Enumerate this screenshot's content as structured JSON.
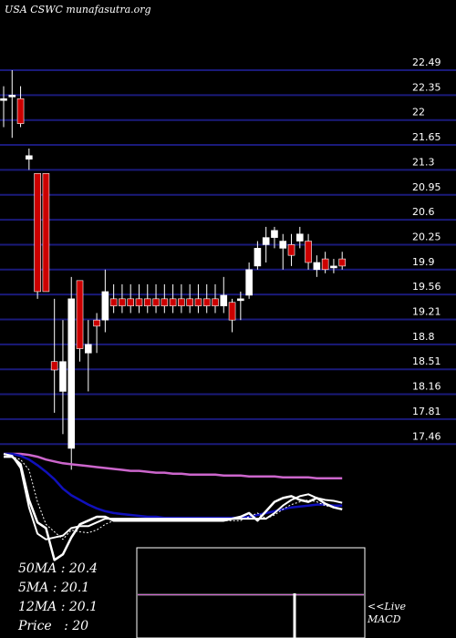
{
  "header": {
    "title": "USA CSWC munafasutra.org"
  },
  "readouts": {
    "ma50": "50MA : 20.4",
    "ma5": "5MA : 20.1",
    "ma12": "12MA : 20.1",
    "price": "Price   : 20"
  },
  "macd_label": {
    "line1": "<<Live",
    "line2": "MACD"
  },
  "colors": {
    "background": "#000000",
    "gridline": "#1a1a7a",
    "bull_candle": "#ffffff",
    "bear_candle": "#cc0000",
    "ma_long": "#cc66cc",
    "ma_mid": "#1010bb",
    "ma_short": "#ffffff",
    "macd_signal": "#cc66cc"
  },
  "chart_data": [
    {
      "type": "candlestick",
      "title": "USA CSWC munafasutra.org",
      "y_ticks": [
        22.49,
        22.35,
        22,
        21.65,
        21.3,
        20.95,
        20.6,
        20.25,
        19.9,
        19.56,
        19.21,
        18.8,
        18.51,
        18.16,
        17.81,
        17.46
      ],
      "candles": [
        {
          "o": 22.3,
          "h": 22.4,
          "l": 21.9,
          "c": 22.3,
          "dir": "bull"
        },
        {
          "o": 22.35,
          "h": 22.49,
          "l": 21.75,
          "c": 22.35,
          "dir": "bull"
        },
        {
          "o": 22.3,
          "h": 22.4,
          "l": 21.9,
          "c": 21.95,
          "dir": "bear"
        },
        {
          "o": 21.45,
          "h": 21.6,
          "l": 21.3,
          "c": 21.5,
          "dir": "bull"
        },
        {
          "o": 21.25,
          "h": 21.25,
          "l": 19.5,
          "c": 19.6,
          "dir": "bear"
        },
        {
          "o": 21.25,
          "h": 21.25,
          "l": 19.6,
          "c": 19.6,
          "dir": "bear"
        },
        {
          "o": 18.6,
          "h": 19.5,
          "l": 17.9,
          "c": 18.5,
          "dir": "bear"
        },
        {
          "o": 18.2,
          "h": 19.2,
          "l": 17.6,
          "c": 18.6,
          "dir": "bull"
        },
        {
          "o": 17.4,
          "h": 19.8,
          "l": 17.1,
          "c": 19.5,
          "dir": "bull"
        },
        {
          "o": 19.75,
          "h": 19.75,
          "l": 18.6,
          "c": 18.75,
          "dir": "bear"
        },
        {
          "o": 18.7,
          "h": 19.2,
          "l": 18.2,
          "c": 18.8,
          "dir": "bull"
        },
        {
          "o": 19.2,
          "h": 19.3,
          "l": 18.7,
          "c": 19.1,
          "dir": "bear"
        },
        {
          "o": 19.2,
          "h": 19.9,
          "l": 19.0,
          "c": 19.6,
          "dir": "bull"
        },
        {
          "o": 19.5,
          "h": 19.7,
          "l": 19.3,
          "c": 19.4,
          "dir": "bear"
        },
        {
          "o": 19.5,
          "h": 19.7,
          "l": 19.3,
          "c": 19.4,
          "dir": "bear"
        },
        {
          "o": 19.5,
          "h": 19.7,
          "l": 19.3,
          "c": 19.4,
          "dir": "bear"
        },
        {
          "o": 19.5,
          "h": 19.7,
          "l": 19.3,
          "c": 19.4,
          "dir": "bear"
        },
        {
          "o": 19.5,
          "h": 19.7,
          "l": 19.3,
          "c": 19.4,
          "dir": "bear"
        },
        {
          "o": 19.5,
          "h": 19.7,
          "l": 19.3,
          "c": 19.4,
          "dir": "bear"
        },
        {
          "o": 19.5,
          "h": 19.7,
          "l": 19.3,
          "c": 19.4,
          "dir": "bear"
        },
        {
          "o": 19.5,
          "h": 19.7,
          "l": 19.3,
          "c": 19.4,
          "dir": "bear"
        },
        {
          "o": 19.5,
          "h": 19.7,
          "l": 19.3,
          "c": 19.4,
          "dir": "bear"
        },
        {
          "o": 19.5,
          "h": 19.7,
          "l": 19.3,
          "c": 19.4,
          "dir": "bear"
        },
        {
          "o": 19.5,
          "h": 19.7,
          "l": 19.3,
          "c": 19.4,
          "dir": "bear"
        },
        {
          "o": 19.5,
          "h": 19.7,
          "l": 19.3,
          "c": 19.4,
          "dir": "bear"
        },
        {
          "o": 19.5,
          "h": 19.7,
          "l": 19.3,
          "c": 19.4,
          "dir": "bear"
        },
        {
          "o": 19.4,
          "h": 19.8,
          "l": 19.3,
          "c": 19.55,
          "dir": "bull"
        },
        {
          "o": 19.45,
          "h": 19.5,
          "l": 19.0,
          "c": 19.2,
          "dir": "bear"
        },
        {
          "o": 19.5,
          "h": 19.6,
          "l": 19.2,
          "c": 19.5,
          "dir": "bull"
        },
        {
          "o": 19.55,
          "h": 20.0,
          "l": 19.5,
          "c": 19.9,
          "dir": "bull"
        },
        {
          "o": 19.95,
          "h": 20.3,
          "l": 19.9,
          "c": 20.2,
          "dir": "bull"
        },
        {
          "o": 20.25,
          "h": 20.5,
          "l": 20.0,
          "c": 20.35,
          "dir": "bull"
        },
        {
          "o": 20.35,
          "h": 20.5,
          "l": 20.2,
          "c": 20.45,
          "dir": "bull"
        },
        {
          "o": 20.2,
          "h": 20.4,
          "l": 19.9,
          "c": 20.3,
          "dir": "bull"
        },
        {
          "o": 20.25,
          "h": 20.4,
          "l": 19.95,
          "c": 20.1,
          "dir": "bear"
        },
        {
          "o": 20.3,
          "h": 20.5,
          "l": 20.2,
          "c": 20.4,
          "dir": "bull"
        },
        {
          "o": 20.3,
          "h": 20.4,
          "l": 19.9,
          "c": 20.0,
          "dir": "bear"
        },
        {
          "o": 19.9,
          "h": 20.1,
          "l": 19.8,
          "c": 20.0,
          "dir": "bull"
        },
        {
          "o": 20.05,
          "h": 20.15,
          "l": 19.85,
          "c": 19.9,
          "dir": "bear"
        },
        {
          "o": 19.95,
          "h": 20.05,
          "l": 19.85,
          "c": 19.95,
          "dir": "bull"
        },
        {
          "o": 20.05,
          "h": 20.15,
          "l": 19.9,
          "c": 19.95,
          "dir": "bear"
        }
      ]
    },
    {
      "type": "line",
      "series": [
        {
          "values": [
            99,
            99,
            99,
            98,
            96,
            93,
            91,
            89,
            88,
            87,
            86,
            85,
            84,
            83,
            82,
            81,
            81,
            80,
            79,
            79,
            78,
            78,
            77,
            77,
            77,
            77,
            76,
            76,
            76,
            75,
            75,
            75,
            75,
            74,
            74,
            74,
            74,
            73,
            73,
            73,
            73
          ]
        },
        {
          "values": [
            99,
            99,
            97,
            93,
            87,
            80,
            72,
            62,
            55,
            50,
            45,
            41,
            38,
            36,
            35,
            34,
            33,
            32,
            32,
            31,
            31,
            31,
            31,
            31,
            31,
            31,
            31,
            31,
            31,
            32,
            34,
            36,
            38,
            40,
            42,
            43,
            44,
            45,
            45,
            44,
            44
          ]
        },
        {
          "values": [
            96,
            96,
            93,
            82,
            48,
            24,
            16,
            8,
            18,
            16,
            15,
            18,
            24,
            28,
            28,
            28,
            28,
            28,
            28,
            28,
            28,
            28,
            28,
            28,
            28,
            28,
            28,
            28,
            28,
            32,
            36,
            30,
            34,
            40,
            45,
            48,
            50,
            48,
            44,
            42,
            40
          ]
        },
        {
          "values": [
            99,
            97,
            84,
            42,
            14,
            8,
            10,
            12,
            20,
            22,
            22,
            26,
            30,
            30,
            30,
            30,
            30,
            30,
            30,
            30,
            30,
            30,
            30,
            30,
            30,
            30,
            30,
            30,
            30,
            30,
            30,
            30,
            36,
            44,
            50,
            54,
            56,
            52,
            50,
            49,
            47
          ]
        },
        {
          "values": [
            96,
            96,
            88,
            50,
            26,
            20,
            -14,
            -8,
            10,
            24,
            28,
            32,
            32,
            28,
            28,
            28,
            28,
            28,
            28,
            28,
            28,
            28,
            28,
            28,
            28,
            28,
            28,
            30,
            32,
            36,
            28,
            38,
            48,
            52,
            54,
            50,
            48,
            52,
            46,
            42,
            40
          ]
        }
      ]
    },
    {
      "type": "line",
      "series": [
        {
          "values": [
            48,
            48,
            48,
            48,
            48,
            48,
            48,
            48,
            48,
            48,
            48,
            48,
            48,
            48,
            48,
            48,
            48,
            48,
            48,
            48,
            48,
            48,
            48,
            48,
            48,
            48,
            48,
            48,
            48,
            48,
            48,
            48,
            48,
            48,
            48,
            48,
            48,
            48,
            48,
            48,
            48
          ]
        },
        {
          "values": [
            48,
            48,
            48,
            48,
            48,
            48,
            48,
            48,
            48,
            48,
            48,
            48,
            48,
            48,
            48,
            48,
            48,
            48,
            48,
            48,
            48,
            48,
            48,
            48,
            48,
            48,
            48,
            48,
            48,
            48,
            48,
            48,
            48,
            48,
            48,
            48,
            48,
            48,
            48,
            48,
            48
          ]
        }
      ]
    }
  ]
}
